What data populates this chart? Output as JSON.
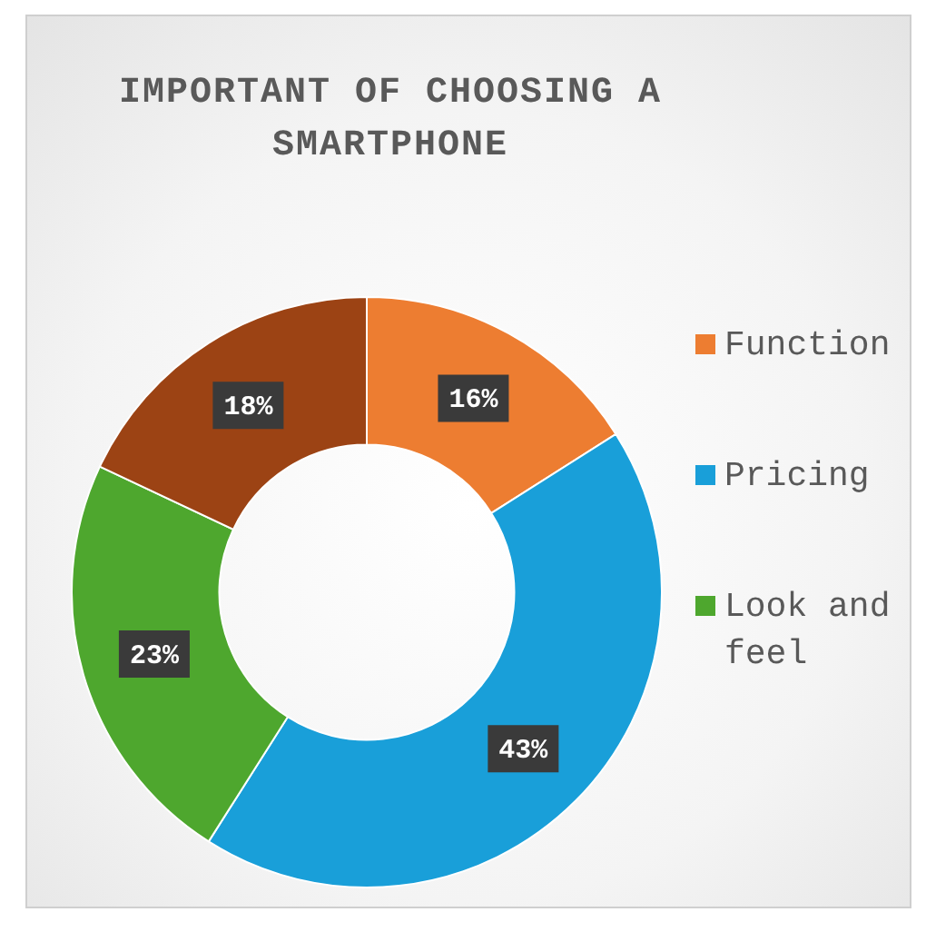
{
  "chart_data": {
    "type": "donut",
    "title": "IMPORTANT OF CHOOSING A SMARTPHONE",
    "categories": [
      "Function",
      "Pricing",
      "Look and feel",
      null
    ],
    "values": [
      16,
      43,
      23,
      18
    ],
    "colors": [
      "#ed7d31",
      "#199fd9",
      "#4ea72e",
      "#9c4314"
    ],
    "value_labels": [
      "16%",
      "43%",
      "23%",
      "18%"
    ],
    "legend": "right"
  }
}
